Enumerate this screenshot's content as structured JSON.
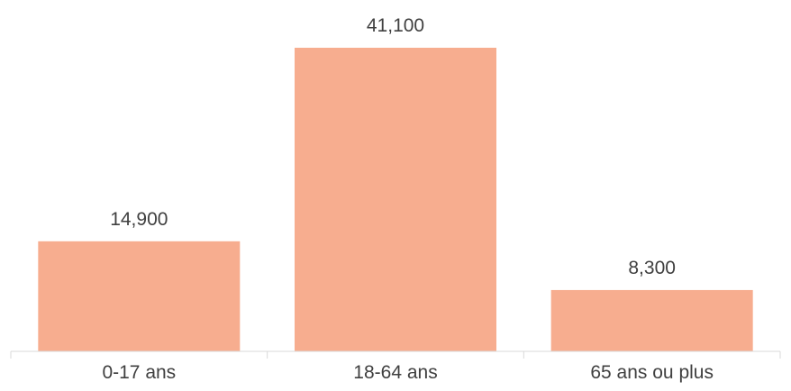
{
  "chart_data": {
    "type": "bar",
    "categories": [
      "0-17 ans",
      "18-64 ans",
      "65 ans ou plus"
    ],
    "values": [
      14900,
      41100,
      8300
    ],
    "value_labels": [
      "14,900",
      "41,100",
      "8,300"
    ],
    "title": "",
    "xlabel": "",
    "ylabel": "",
    "ylim": [
      0,
      41100
    ],
    "grid": false,
    "legend": "none",
    "colors": {
      "bar": "#F7AD8F",
      "axis": "#D9D9D9",
      "text": "#404040"
    }
  }
}
